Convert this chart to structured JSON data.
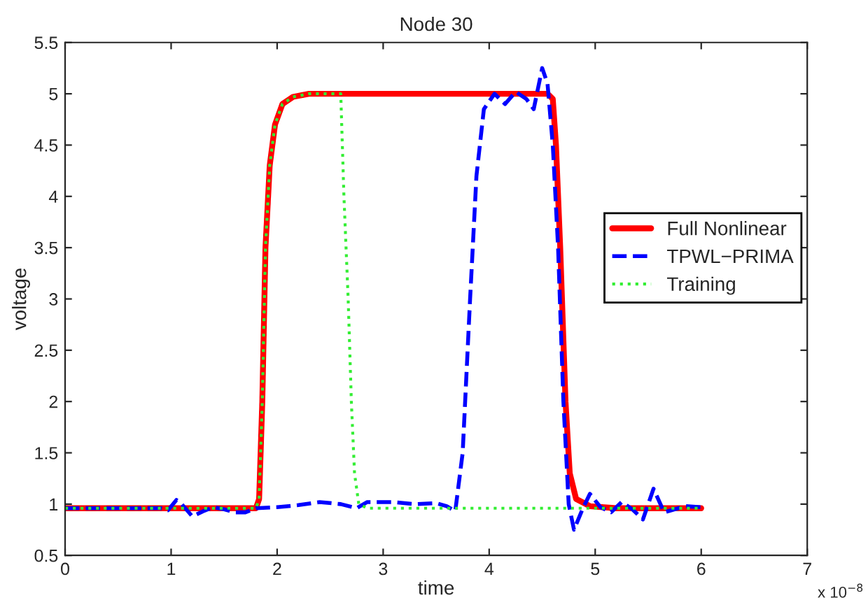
{
  "chart_data": {
    "type": "line",
    "title": "Node 30",
    "xlabel": "time",
    "ylabel": "voltage",
    "xlim": [
      0,
      7
    ],
    "xticks": [
      0,
      1,
      2,
      3,
      4,
      5,
      6,
      7
    ],
    "ylim": [
      0.5,
      5.5
    ],
    "yticks": [
      0.5,
      1,
      1.5,
      2,
      2.5,
      3,
      3.5,
      4,
      4.5,
      5,
      5.5
    ],
    "annotations": [
      "x 10$^{−8}$"
    ],
    "grid": false,
    "legend": "right",
    "series": [
      {
        "name": "Full Nonlinear",
        "color": "#ff0000",
        "line_style": "solid",
        "x": [
          0,
          1.8,
          1.83,
          1.86,
          1.89,
          1.93,
          1.98,
          2.05,
          2.15,
          2.3,
          4.55,
          4.6,
          4.63,
          4.67,
          4.72,
          4.76,
          4.82,
          4.95,
          5.2,
          6
        ],
        "values": [
          0.96,
          0.96,
          1.05,
          2,
          3.5,
          4.3,
          4.7,
          4.9,
          4.97,
          5,
          5,
          4.95,
          4.5,
          3.5,
          2,
          1.3,
          1.05,
          0.98,
          0.96,
          0.96
        ]
      },
      {
        "name": "TPWL−PRIMA",
        "color": "#0000ff",
        "line_style": "dashed",
        "x": [
          0,
          0.9,
          0.97,
          1.05,
          1.1,
          1.2,
          1.3,
          1.4,
          1.5,
          1.6,
          1.7,
          1.8,
          2.0,
          2.2,
          2.4,
          2.6,
          2.75,
          2.85,
          3.1,
          3.3,
          3.5,
          3.6,
          3.68,
          3.75,
          3.82,
          3.88,
          3.95,
          4.05,
          4.15,
          4.25,
          4.35,
          4.42,
          4.5,
          4.55,
          4.6,
          4.65,
          4.7,
          4.75,
          4.8,
          4.88,
          4.95,
          5.05,
          5.15,
          5.25,
          5.35,
          5.45,
          5.55,
          5.65,
          5.75,
          5.85,
          6
        ],
        "values": [
          0.96,
          0.96,
          0.94,
          1.04,
          1.0,
          0.88,
          0.93,
          0.97,
          0.95,
          0.92,
          0.92,
          0.96,
          0.97,
          0.99,
          1.02,
          1.0,
          0.96,
          1.02,
          1.02,
          1.0,
          1.01,
          0.98,
          0.93,
          1.5,
          3,
          4.2,
          4.85,
          5.0,
          4.9,
          5.02,
          4.95,
          4.85,
          5.25,
          5.1,
          4.5,
          3.5,
          2,
          1.0,
          0.75,
          0.95,
          1.1,
          0.97,
          0.92,
          1.02,
          0.95,
          0.85,
          1.15,
          0.92,
          0.95,
          0.98,
          0.97
        ]
      },
      {
        "name": "Training",
        "color": "#33ee33",
        "line_style": "dotted",
        "x": [
          0,
          1.8,
          1.83,
          1.86,
          1.89,
          1.93,
          1.98,
          2.05,
          2.15,
          2.3,
          2.6,
          2.63,
          2.67,
          2.7,
          2.73,
          2.77,
          2.85,
          6
        ],
        "values": [
          0.96,
          0.96,
          1.05,
          2,
          3.5,
          4.3,
          4.7,
          4.9,
          4.97,
          5,
          5,
          4,
          3,
          2,
          1.3,
          1.0,
          0.96,
          0.96
        ]
      }
    ]
  }
}
